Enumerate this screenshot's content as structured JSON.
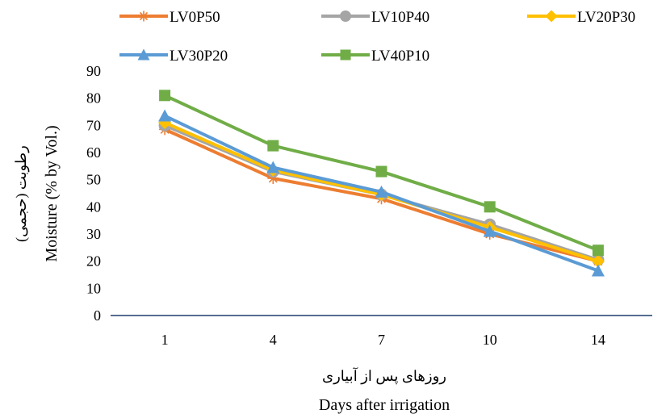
{
  "chart_data": {
    "type": "line",
    "categories": [
      "1",
      "4",
      "7",
      "10",
      "14"
    ],
    "ylim": [
      0,
      90
    ],
    "yticks": [
      0,
      10,
      20,
      30,
      40,
      50,
      60,
      70,
      80,
      90
    ],
    "grid": false,
    "legend_position": "top",
    "xlabel_fa": "روزهای پس از آبیاری",
    "xlabel": "Days after irrigation",
    "ylabel_fa": "رطوبت (حجمی)",
    "ylabel": "Moisture (% by Vol.)",
    "series": [
      {
        "name": "LV0P50",
        "color": "#ED7D31",
        "marker": "asterisk",
        "values": [
          68.5,
          50.5,
          43,
          30,
          20
        ]
      },
      {
        "name": "LV10P40",
        "color": "#A5A5A5",
        "marker": "circle",
        "values": [
          70,
          53,
          44.5,
          33.5,
          20.5
        ]
      },
      {
        "name": "LV20P30",
        "color": "#FFC000",
        "marker": "diamond",
        "values": [
          71,
          53.5,
          44.5,
          32.5,
          20
        ]
      },
      {
        "name": "LV30P20",
        "color": "#5B9BD5",
        "marker": "triangle",
        "values": [
          73.5,
          54.5,
          45.5,
          31,
          16.5
        ]
      },
      {
        "name": "LV40P10",
        "color": "#70AD47",
        "marker": "square",
        "values": [
          81,
          62.5,
          53,
          40,
          24
        ]
      }
    ]
  }
}
